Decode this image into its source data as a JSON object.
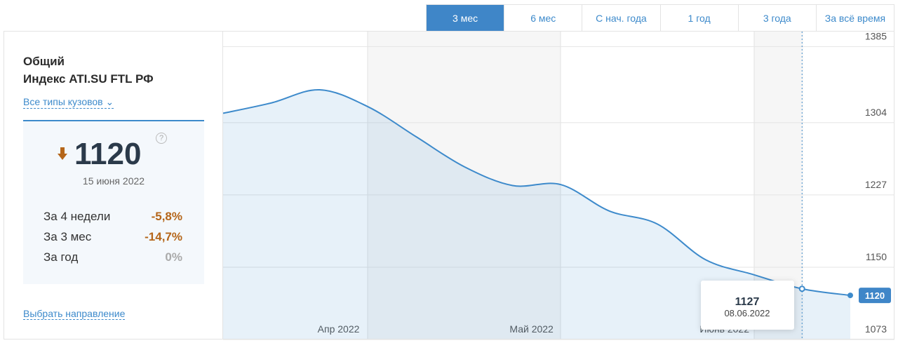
{
  "tabs": {
    "items": [
      "3 мес",
      "6 мес",
      "С нач. года",
      "1 год",
      "3 года",
      "За всё время"
    ],
    "active": 0
  },
  "panel": {
    "title": "Общий",
    "subtitle": "Индекс ATI.SU FTL РФ",
    "filter": "Все типы кузовов",
    "date": "15 июня 2022",
    "stats": [
      [
        "За 4 недели",
        "-5,8%"
      ],
      [
        "За 3 мес",
        "-14,7%"
      ],
      [
        "За год",
        "0%"
      ]
    ],
    "link": "Выбрать направление"
  },
  "chart_data": {
    "type": "area",
    "categories": [
      null,
      null,
      "Апр 2022",
      null,
      null,
      null,
      "Май 2022",
      null,
      null,
      null,
      "Июнь 2022",
      null,
      null,
      null
    ],
    "values": [
      1314,
      1325,
      1339,
      1321,
      1289,
      1257,
      1237,
      1238,
      1210,
      1196,
      1158,
      1142,
      1127,
      1120
    ],
    "color": "#3d8acb",
    "ylim": [
      1073,
      1401
    ],
    "yticks": [
      1073,
      1150,
      1227,
      1304,
      1385
    ],
    "grid": true,
    "tooltip": {
      "index": 12,
      "date": "08.06.2022"
    }
  }
}
